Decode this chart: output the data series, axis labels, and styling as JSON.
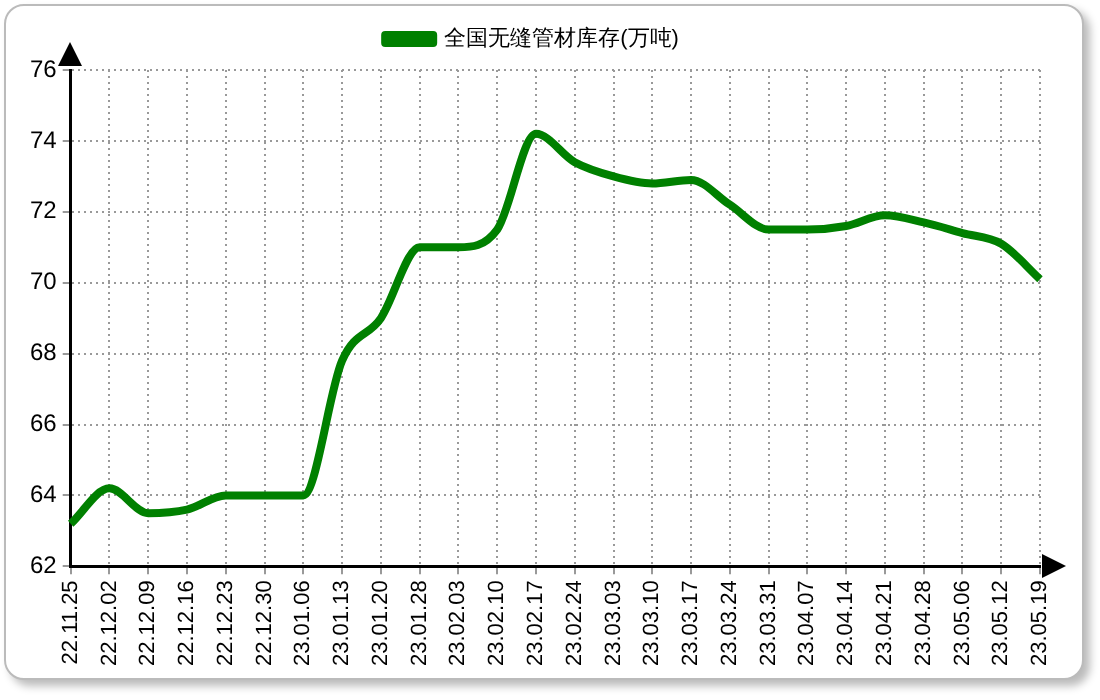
{
  "chart_data": {
    "type": "line",
    "categories": [
      "22.11.25",
      "22.12.02",
      "22.12.09",
      "22.12.16",
      "22.12.23",
      "22.12.30",
      "23.01.06",
      "23.01.13",
      "23.01.20",
      "23.01.28",
      "23.02.03",
      "23.02.10",
      "23.02.17",
      "23.02.24",
      "23.03.03",
      "23.03.10",
      "23.03.17",
      "23.03.24",
      "23.03.31",
      "23.04.07",
      "23.04.14",
      "23.04.21",
      "23.04.28",
      "23.05.06",
      "23.05.12",
      "23.05.19"
    ],
    "series": [
      {
        "name": "全国无缝管材库存(万吨)",
        "color": "#008000",
        "values": [
          63.2,
          64.2,
          63.5,
          63.6,
          64.0,
          64.0,
          64.0,
          67.8,
          69.0,
          71.0,
          71.0,
          71.5,
          74.2,
          73.4,
          73.0,
          72.8,
          72.9,
          72.2,
          71.5,
          71.5,
          71.6,
          71.9,
          71.7,
          71.4,
          71.1,
          70.1
        ]
      }
    ],
    "ylim": [
      62,
      76
    ],
    "yticks": [
      62,
      64,
      66,
      68,
      70,
      72,
      74,
      76
    ],
    "grid": true,
    "legend": "top",
    "marker": "none",
    "line_style": "solid"
  }
}
